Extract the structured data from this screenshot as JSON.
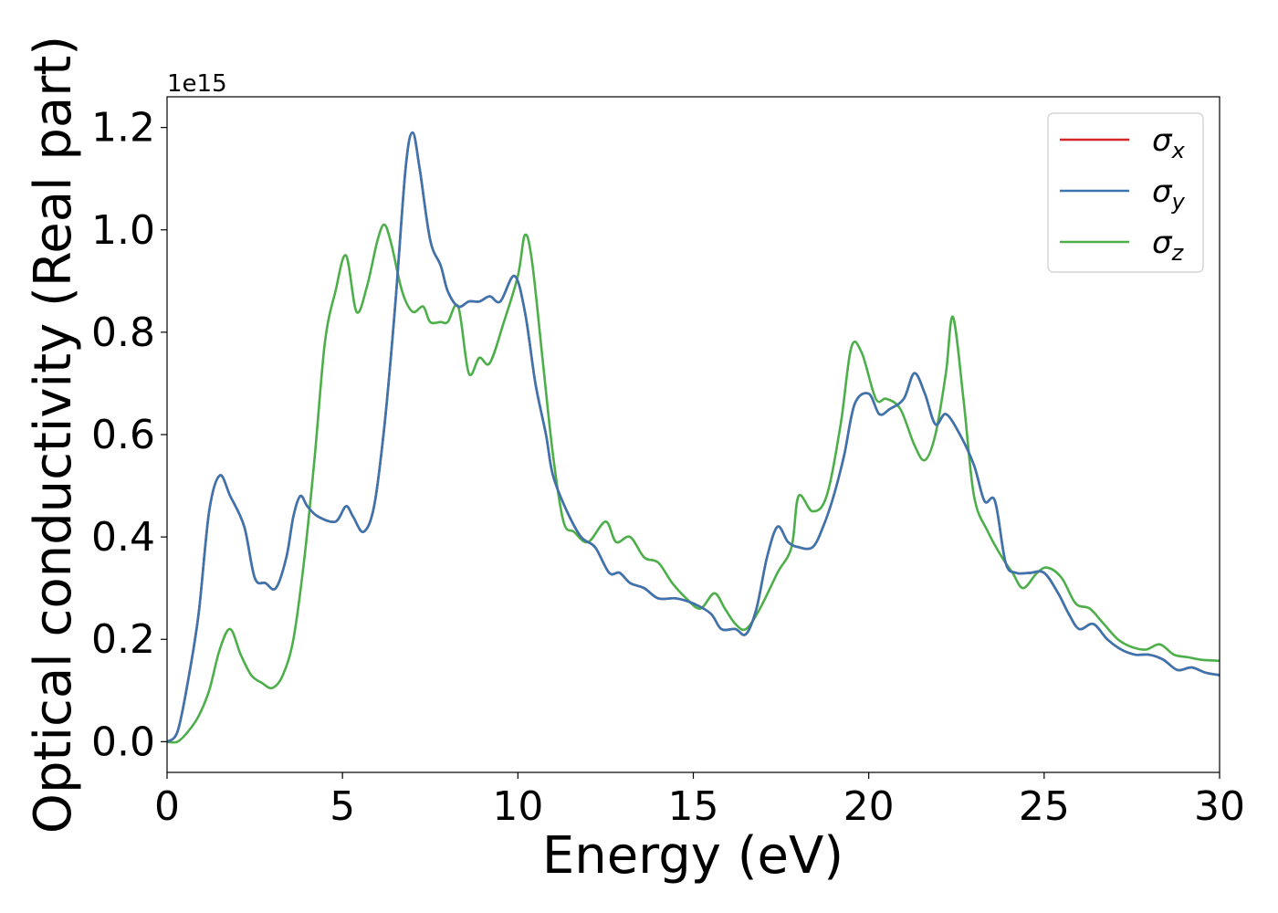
{
  "chart_data": {
    "type": "line",
    "xlabel": "Energy (eV)",
    "ylabel": "Optical conductivity (Real part)",
    "y_offset_label": "1e15",
    "y_scale_factor": 1000000000000000.0,
    "xlim": [
      0,
      30
    ],
    "ylim": [
      -0.06,
      1.26
    ],
    "xticks": [
      0,
      5,
      10,
      15,
      20,
      25,
      30
    ],
    "xtick_labels": [
      "0",
      "5",
      "10",
      "15",
      "20",
      "25",
      "30"
    ],
    "yticks": [
      0.0,
      0.2,
      0.4,
      0.6,
      0.8,
      1.0,
      1.2
    ],
    "ytick_labels": [
      "0.0",
      "0.2",
      "0.4",
      "0.6",
      "0.8",
      "1.0",
      "1.2"
    ],
    "grid": false,
    "legend_position": "top-right",
    "series": [
      {
        "name": "σx",
        "symbol": "σ",
        "sub": "x",
        "color": "#d62728",
        "data_ref": "xy"
      },
      {
        "name": "σy",
        "symbol": "σ",
        "sub": "y",
        "color": "#3a75b0",
        "data": [
          [
            0,
            0
          ],
          [
            0.3,
            0.02
          ],
          [
            0.6,
            0.12
          ],
          [
            0.9,
            0.25
          ],
          [
            1.2,
            0.45
          ],
          [
            1.5,
            0.52
          ],
          [
            1.8,
            0.48
          ],
          [
            2.2,
            0.42
          ],
          [
            2.5,
            0.32
          ],
          [
            2.8,
            0.31
          ],
          [
            3.1,
            0.3
          ],
          [
            3.4,
            0.36
          ],
          [
            3.6,
            0.44
          ],
          [
            3.8,
            0.48
          ],
          [
            4.0,
            0.46
          ],
          [
            4.3,
            0.44
          ],
          [
            4.8,
            0.43
          ],
          [
            5.1,
            0.46
          ],
          [
            5.3,
            0.44
          ],
          [
            5.6,
            0.41
          ],
          [
            5.9,
            0.46
          ],
          [
            6.2,
            0.62
          ],
          [
            6.5,
            0.85
          ],
          [
            6.8,
            1.12
          ],
          [
            7.0,
            1.19
          ],
          [
            7.2,
            1.12
          ],
          [
            7.5,
            0.98
          ],
          [
            7.8,
            0.93
          ],
          [
            8.0,
            0.88
          ],
          [
            8.3,
            0.85
          ],
          [
            8.6,
            0.86
          ],
          [
            8.9,
            0.86
          ],
          [
            9.2,
            0.87
          ],
          [
            9.5,
            0.86
          ],
          [
            9.9,
            0.91
          ],
          [
            10.2,
            0.84
          ],
          [
            10.5,
            0.7
          ],
          [
            10.8,
            0.6
          ],
          [
            11.0,
            0.52
          ],
          [
            11.4,
            0.45
          ],
          [
            11.8,
            0.4
          ],
          [
            12.2,
            0.38
          ],
          [
            12.6,
            0.33
          ],
          [
            12.9,
            0.33
          ],
          [
            13.2,
            0.31
          ],
          [
            13.6,
            0.3
          ],
          [
            14.0,
            0.28
          ],
          [
            14.5,
            0.28
          ],
          [
            15.0,
            0.27
          ],
          [
            15.5,
            0.25
          ],
          [
            15.8,
            0.22
          ],
          [
            16.2,
            0.22
          ],
          [
            16.5,
            0.21
          ],
          [
            16.8,
            0.26
          ],
          [
            17.1,
            0.36
          ],
          [
            17.4,
            0.42
          ],
          [
            17.7,
            0.39
          ],
          [
            18.0,
            0.38
          ],
          [
            18.4,
            0.38
          ],
          [
            18.7,
            0.42
          ],
          [
            19.0,
            0.48
          ],
          [
            19.3,
            0.56
          ],
          [
            19.6,
            0.66
          ],
          [
            20.0,
            0.68
          ],
          [
            20.3,
            0.64
          ],
          [
            20.6,
            0.65
          ],
          [
            21.0,
            0.67
          ],
          [
            21.3,
            0.72
          ],
          [
            21.6,
            0.68
          ],
          [
            21.9,
            0.62
          ],
          [
            22.2,
            0.64
          ],
          [
            22.6,
            0.6
          ],
          [
            23.0,
            0.54
          ],
          [
            23.3,
            0.47
          ],
          [
            23.6,
            0.47
          ],
          [
            23.9,
            0.35
          ],
          [
            24.2,
            0.33
          ],
          [
            24.6,
            0.33
          ],
          [
            25.0,
            0.33
          ],
          [
            25.4,
            0.29
          ],
          [
            25.7,
            0.25
          ],
          [
            26.0,
            0.22
          ],
          [
            26.4,
            0.23
          ],
          [
            26.8,
            0.2
          ],
          [
            27.2,
            0.18
          ],
          [
            27.6,
            0.17
          ],
          [
            28.0,
            0.17
          ],
          [
            28.4,
            0.16
          ],
          [
            28.8,
            0.14
          ],
          [
            29.2,
            0.145
          ],
          [
            29.6,
            0.135
          ],
          [
            30,
            0.13
          ]
        ]
      },
      {
        "name": "σz",
        "symbol": "σ",
        "sub": "z",
        "color": "#4daf4a",
        "data": [
          [
            0,
            0
          ],
          [
            0.3,
            0.0
          ],
          [
            0.6,
            0.02
          ],
          [
            0.9,
            0.05
          ],
          [
            1.2,
            0.1
          ],
          [
            1.5,
            0.18
          ],
          [
            1.8,
            0.22
          ],
          [
            2.1,
            0.17
          ],
          [
            2.4,
            0.13
          ],
          [
            2.7,
            0.115
          ],
          [
            3.0,
            0.105
          ],
          [
            3.3,
            0.13
          ],
          [
            3.6,
            0.2
          ],
          [
            3.9,
            0.35
          ],
          [
            4.2,
            0.55
          ],
          [
            4.5,
            0.78
          ],
          [
            4.8,
            0.88
          ],
          [
            5.1,
            0.95
          ],
          [
            5.4,
            0.84
          ],
          [
            5.7,
            0.89
          ],
          [
            6.0,
            0.98
          ],
          [
            6.2,
            1.01
          ],
          [
            6.4,
            0.97
          ],
          [
            6.7,
            0.88
          ],
          [
            7.0,
            0.84
          ],
          [
            7.3,
            0.85
          ],
          [
            7.5,
            0.82
          ],
          [
            7.8,
            0.82
          ],
          [
            8.0,
            0.82
          ],
          [
            8.3,
            0.85
          ],
          [
            8.6,
            0.72
          ],
          [
            8.9,
            0.75
          ],
          [
            9.2,
            0.74
          ],
          [
            9.6,
            0.82
          ],
          [
            10.0,
            0.91
          ],
          [
            10.2,
            0.99
          ],
          [
            10.4,
            0.94
          ],
          [
            10.7,
            0.75
          ],
          [
            11.0,
            0.56
          ],
          [
            11.3,
            0.43
          ],
          [
            11.6,
            0.41
          ],
          [
            12.0,
            0.39
          ],
          [
            12.5,
            0.43
          ],
          [
            12.8,
            0.39
          ],
          [
            13.2,
            0.4
          ],
          [
            13.6,
            0.36
          ],
          [
            14.0,
            0.35
          ],
          [
            14.4,
            0.31
          ],
          [
            14.8,
            0.28
          ],
          [
            15.2,
            0.26
          ],
          [
            15.6,
            0.29
          ],
          [
            15.9,
            0.26
          ],
          [
            16.2,
            0.23
          ],
          [
            16.5,
            0.22
          ],
          [
            16.9,
            0.26
          ],
          [
            17.4,
            0.33
          ],
          [
            17.8,
            0.38
          ],
          [
            18.0,
            0.48
          ],
          [
            18.4,
            0.45
          ],
          [
            18.8,
            0.48
          ],
          [
            19.2,
            0.62
          ],
          [
            19.5,
            0.77
          ],
          [
            19.8,
            0.76
          ],
          [
            20.2,
            0.67
          ],
          [
            20.5,
            0.67
          ],
          [
            20.9,
            0.65
          ],
          [
            21.3,
            0.58
          ],
          [
            21.6,
            0.55
          ],
          [
            21.9,
            0.6
          ],
          [
            22.2,
            0.72
          ],
          [
            22.4,
            0.83
          ],
          [
            22.7,
            0.67
          ],
          [
            23.0,
            0.48
          ],
          [
            23.4,
            0.41
          ],
          [
            23.8,
            0.36
          ],
          [
            24.1,
            0.33
          ],
          [
            24.4,
            0.3
          ],
          [
            24.8,
            0.33
          ],
          [
            25.1,
            0.34
          ],
          [
            25.5,
            0.32
          ],
          [
            25.9,
            0.27
          ],
          [
            26.3,
            0.26
          ],
          [
            26.7,
            0.23
          ],
          [
            27.1,
            0.2
          ],
          [
            27.5,
            0.185
          ],
          [
            27.9,
            0.18
          ],
          [
            28.3,
            0.19
          ],
          [
            28.7,
            0.17
          ],
          [
            29.1,
            0.165
          ],
          [
            29.5,
            0.16
          ],
          [
            30,
            0.158
          ]
        ]
      }
    ]
  }
}
